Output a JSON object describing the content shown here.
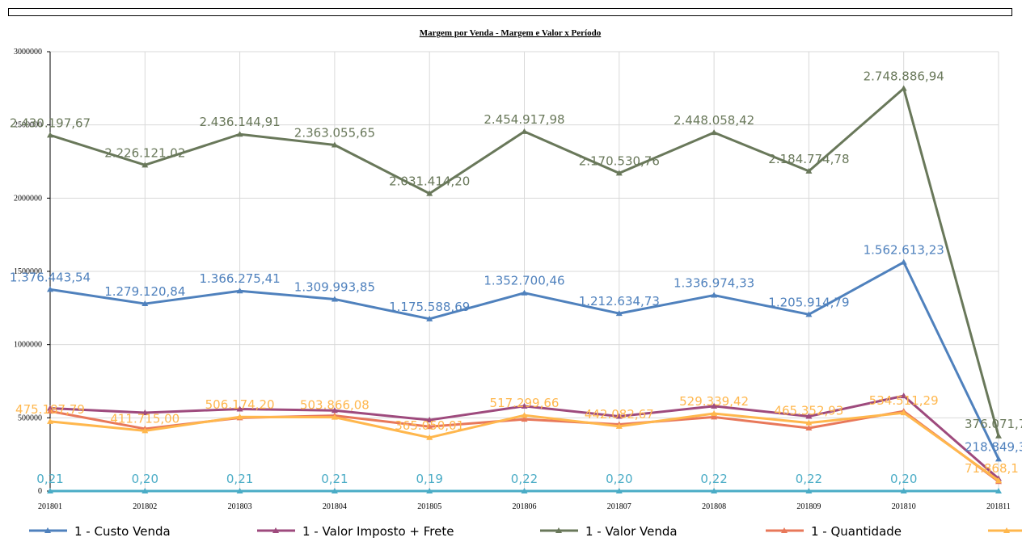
{
  "chart_data": {
    "type": "line",
    "title": "Margem por Venda - Margem e Valor x Período",
    "categories": [
      "201801",
      "201802",
      "201803",
      "201804",
      "201805",
      "201806",
      "201807",
      "201808",
      "201809",
      "201810",
      "201811"
    ],
    "ylim": [
      0,
      3000000
    ],
    "yticks": [
      "0",
      "500000",
      "1000000",
      "1500000",
      "2000000",
      "2500000",
      "3000000"
    ],
    "grid": true,
    "legend_position": "bottom",
    "series": [
      {
        "name": "1 - Custo Venda",
        "color": "#4f81bd",
        "values": [
          1376443.54,
          1279120.84,
          1366275.41,
          1309993.85,
          1175588.69,
          1352700.46,
          1212634.73,
          1336974.33,
          1205914.79,
          1562613.23,
          218849.3
        ],
        "labels": [
          "1.376.443,54",
          "1.279.120,84",
          "1.366.275,41",
          "1.309.993,85",
          "1.175.588,69",
          "1.352.700,46",
          "1.212.634,73",
          "1.336.974,33",
          "1.205.914,79",
          "1.562.613,23",
          "218.849,3"
        ]
      },
      {
        "name": "1 - Valor Imposto + Frete",
        "color": "#9e4a7d",
        "values": [
          565000,
          535000,
          560000,
          550000,
          485000,
          580000,
          510000,
          580000,
          510000,
          650000,
          85000
        ],
        "labels": []
      },
      {
        "name": "1 - Valor Venda",
        "color": "#69785a",
        "values": [
          2430197.67,
          2226121.02,
          2436144.91,
          2363055.65,
          2031414.2,
          2454917.98,
          2170530.76,
          2448058.42,
          2184774.78,
          2748886.94,
          376071.7
        ],
        "labels": [
          "2.430.197,67",
          "2.226.121,02",
          "2.436.144,91",
          "2.363.055,65",
          "2.031.414,20",
          "2.454.917,98",
          "2.170.530,76",
          "2.448.058,42",
          "2.184.774,78",
          "2.748.886,94",
          "376.071,7"
        ]
      },
      {
        "name": "1 - Quantidade",
        "color": "#e8785a",
        "values": [
          545000,
          425000,
          500000,
          515000,
          440000,
          490000,
          455000,
          505000,
          430000,
          545000,
          65000
        ],
        "labels": []
      },
      {
        "name": "",
        "color": "#ffb74d",
        "values": [
          475187.79,
          411715.0,
          506174.2,
          503866.08,
          365050.01,
          517299.66,
          442082.67,
          529339.42,
          465352.93,
          534511.29,
          71868.1
        ],
        "labels": [
          "475.187,79",
          "411.715,00",
          "506.174,20",
          "503.866,08",
          "365.050,01",
          "517.299,66",
          "442.082,67",
          "529.339,42",
          "465.352,93",
          "534.511,29",
          "71.868,1"
        ]
      },
      {
        "name": "",
        "color": "#4aacc6",
        "values": [
          0.21,
          0.2,
          0.21,
          0.21,
          0.19,
          0.22,
          0.2,
          0.22,
          0.22,
          0.2,
          0.2
        ],
        "labels": [
          "0,21",
          "0,20",
          "0,21",
          "0,21",
          "0,19",
          "0,22",
          "0,20",
          "0,22",
          "0,22",
          "0,20",
          ""
        ]
      }
    ]
  }
}
